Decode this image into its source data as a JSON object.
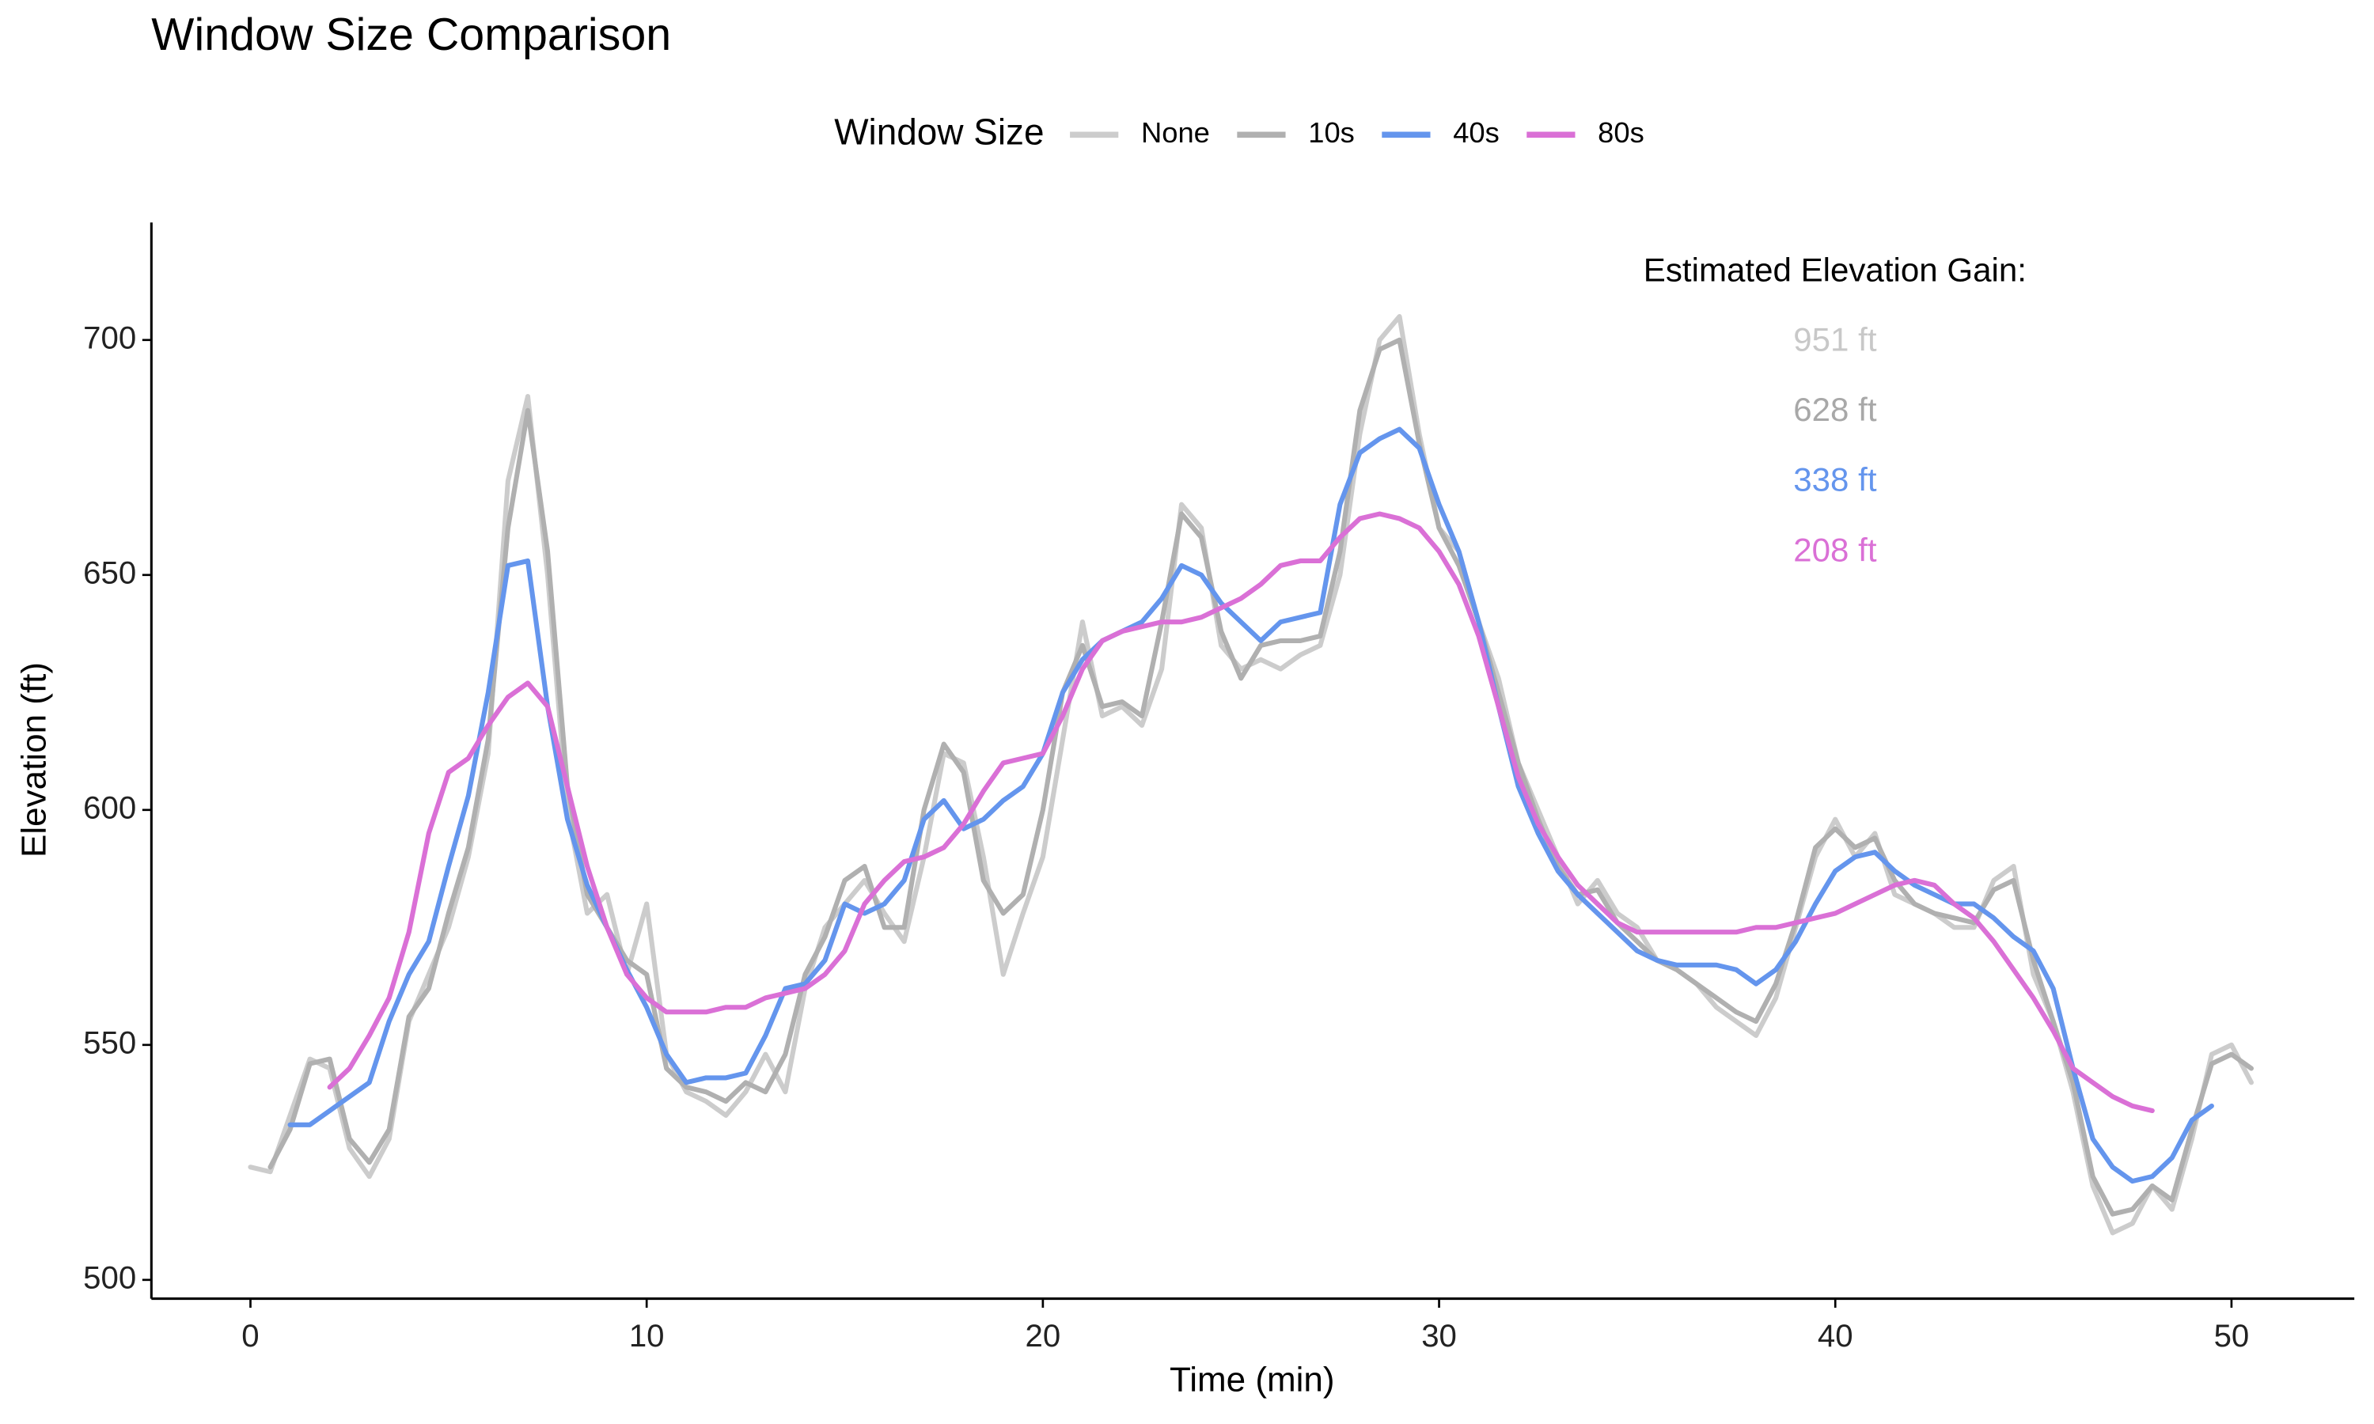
{
  "chart_data": {
    "type": "line",
    "title": "Window Size Comparison",
    "x_label": "Time (min)",
    "y_label": "Elevation (ft)",
    "legend_title": "Window Size",
    "legend_position": "top",
    "grid": false,
    "xlim": [
      -2.5,
      53.1
    ],
    "ylim": [
      496,
      725
    ],
    "xticks": [
      0,
      10,
      20,
      30,
      40,
      50
    ],
    "yticks": [
      500,
      550,
      600,
      650,
      700
    ],
    "annotation": {
      "title": "Estimated Elevation Gain:",
      "labels": [
        {
          "text": "951 ft",
          "color": "#c8c8c8"
        },
        {
          "text": "628 ft",
          "color": "#a8a8a8"
        },
        {
          "text": "338 ft",
          "color": "#6495ed"
        },
        {
          "text": "208 ft",
          "color": "#da70d6"
        }
      ]
    },
    "x": [
      0,
      0.5,
      1,
      1.5,
      2,
      2.5,
      3,
      3.5,
      4,
      4.5,
      5,
      5.5,
      6,
      6.5,
      7,
      7.5,
      8,
      8.5,
      9,
      9.5,
      10,
      10.5,
      11,
      11.5,
      12,
      12.5,
      13,
      13.5,
      14,
      14.5,
      15,
      15.5,
      16,
      16.5,
      17,
      17.5,
      18,
      18.5,
      19,
      19.5,
      20,
      20.5,
      21,
      21.5,
      22,
      22.5,
      23,
      23.5,
      24,
      24.5,
      25,
      25.5,
      26,
      26.5,
      27,
      27.5,
      28,
      28.5,
      29,
      29.5,
      30,
      30.5,
      31,
      31.5,
      32,
      32.5,
      33,
      33.5,
      34,
      34.5,
      35,
      35.5,
      36,
      36.5,
      37,
      37.5,
      38,
      38.5,
      39,
      39.5,
      40,
      40.5,
      41,
      41.5,
      42,
      42.5,
      43,
      43.5,
      44,
      44.5,
      45,
      45.5,
      46,
      46.5,
      47,
      47.5,
      48,
      48.5,
      49,
      49.5,
      50,
      50.5
    ],
    "series": [
      {
        "name": "None",
        "color": "#cccccc",
        "values": [
          524,
          523,
          535,
          547,
          545,
          528,
          522,
          530,
          555,
          565,
          575,
          590,
          612,
          670,
          688,
          650,
          600,
          578,
          582,
          565,
          580,
          548,
          540,
          538,
          535,
          540,
          548,
          540,
          562,
          575,
          580,
          585,
          578,
          572,
          590,
          612,
          610,
          590,
          565,
          578,
          590,
          615,
          640,
          620,
          622,
          618,
          630,
          665,
          660,
          635,
          630,
          632,
          630,
          633,
          635,
          650,
          680,
          700,
          705,
          680,
          660,
          655,
          640,
          628,
          610,
          600,
          590,
          580,
          585,
          578,
          575,
          568,
          566,
          563,
          558,
          555,
          552,
          560,
          575,
          590,
          598,
          590,
          595,
          582,
          580,
          578,
          575,
          575,
          585,
          588,
          565,
          555,
          540,
          520,
          510,
          512,
          520,
          515,
          530,
          548,
          550,
          542
        ]
      },
      {
        "name": "10s",
        "color": "#b0b0b0",
        "values": [
          null,
          524,
          532,
          546,
          547,
          530,
          525,
          532,
          556,
          562,
          578,
          592,
          615,
          660,
          685,
          655,
          605,
          582,
          575,
          568,
          565,
          545,
          541,
          540,
          538,
          542,
          540,
          548,
          565,
          573,
          585,
          588,
          575,
          575,
          600,
          614,
          608,
          585,
          578,
          582,
          600,
          625,
          635,
          622,
          623,
          620,
          640,
          663,
          658,
          638,
          628,
          635,
          636,
          636,
          637,
          655,
          685,
          698,
          700,
          678,
          660,
          652,
          640,
          625,
          610,
          598,
          588,
          582,
          583,
          576,
          572,
          568,
          566,
          563,
          560,
          557,
          555,
          563,
          576,
          592,
          596,
          592,
          594,
          585,
          580,
          578,
          577,
          576,
          583,
          585,
          568,
          555,
          542,
          522,
          514,
          515,
          520,
          517,
          532,
          546,
          548,
          545
        ]
      },
      {
        "name": "40s",
        "color": "#6495ed",
        "values": [
          null,
          null,
          533,
          533,
          536,
          539,
          542,
          555,
          565,
          572,
          588,
          603,
          625,
          652,
          653,
          622,
          598,
          584,
          575,
          566,
          558,
          548,
          542,
          543,
          543,
          544,
          552,
          562,
          563,
          568,
          580,
          578,
          580,
          585,
          598,
          602,
          596,
          598,
          602,
          605,
          612,
          625,
          632,
          636,
          638,
          640,
          645,
          652,
          650,
          644,
          640,
          636,
          640,
          641,
          642,
          665,
          676,
          679,
          681,
          677,
          665,
          655,
          640,
          622,
          605,
          595,
          587,
          582,
          578,
          574,
          570,
          568,
          567,
          567,
          567,
          566,
          563,
          566,
          572,
          580,
          587,
          590,
          591,
          587,
          584,
          582,
          580,
          580,
          577,
          573,
          570,
          562,
          545,
          530,
          524,
          521,
          522,
          526,
          534,
          537,
          null,
          null
        ]
      },
      {
        "name": "80s",
        "color": "#da70d6",
        "values": [
          null,
          null,
          null,
          null,
          541,
          545,
          552,
          560,
          574,
          595,
          608,
          611,
          618,
          624,
          627,
          622,
          605,
          588,
          575,
          565,
          560,
          557,
          557,
          557,
          558,
          558,
          560,
          561,
          562,
          565,
          570,
          580,
          585,
          589,
          590,
          592,
          597,
          604,
          610,
          611,
          612,
          620,
          630,
          636,
          638,
          639,
          640,
          640,
          641,
          643,
          645,
          648,
          652,
          653,
          653,
          658,
          662,
          663,
          662,
          660,
          655,
          648,
          637,
          622,
          607,
          597,
          590,
          584,
          580,
          576,
          574,
          574,
          574,
          574,
          574,
          574,
          575,
          575,
          576,
          577,
          578,
          580,
          582,
          584,
          585,
          584,
          580,
          577,
          572,
          566,
          560,
          553,
          545,
          542,
          539,
          537,
          536,
          null,
          null,
          null,
          null,
          null
        ]
      }
    ]
  }
}
